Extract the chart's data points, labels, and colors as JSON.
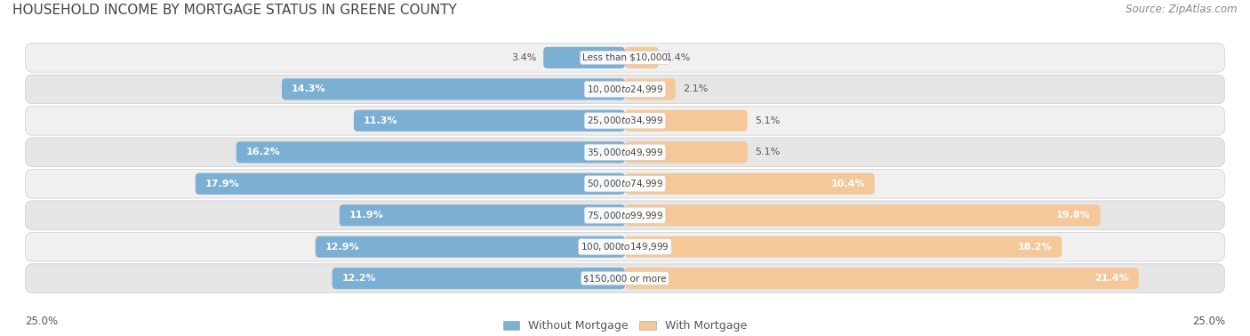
{
  "title": "HOUSEHOLD INCOME BY MORTGAGE STATUS IN GREENE COUNTY",
  "source": "Source: ZipAtlas.com",
  "categories": [
    "Less than $10,000",
    "$10,000 to $24,999",
    "$25,000 to $34,999",
    "$35,000 to $49,999",
    "$50,000 to $74,999",
    "$75,000 to $99,999",
    "$100,000 to $149,999",
    "$150,000 or more"
  ],
  "without_mortgage": [
    3.4,
    14.3,
    11.3,
    16.2,
    17.9,
    11.9,
    12.9,
    12.2
  ],
  "with_mortgage": [
    1.4,
    2.1,
    5.1,
    5.1,
    10.4,
    19.8,
    18.2,
    21.4
  ],
  "color_without": "#7BAFD4",
  "color_with": "#F5C899",
  "axis_max": 25.0,
  "axis_label_left": "25.0%",
  "axis_label_right": "25.0%",
  "legend_label_without": "Without Mortgage",
  "legend_label_with": "With Mortgage",
  "title_fontsize": 11,
  "source_fontsize": 8.5,
  "bar_label_fontsize": 8,
  "category_fontsize": 7.5,
  "axis_tick_fontsize": 8.5,
  "fig_bg": "#FFFFFF",
  "row_bg_colors": [
    "#F0F0F0",
    "#E6E6E6"
  ]
}
